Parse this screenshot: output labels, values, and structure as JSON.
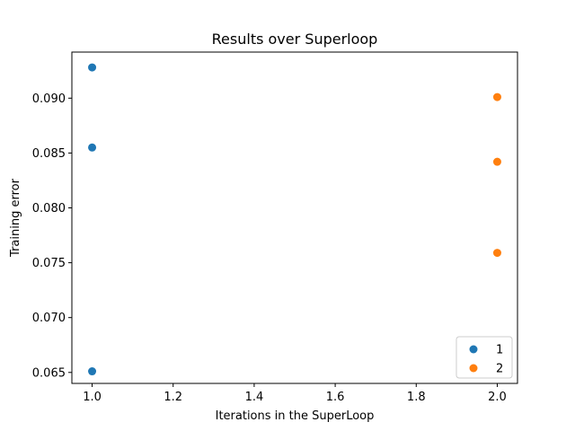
{
  "chart_data": {
    "type": "scatter",
    "title": "Results over Superloop",
    "xlabel": "Iterations in the SuperLoop",
    "ylabel": "Training error",
    "xlim": [
      0.95,
      2.05
    ],
    "ylim": [
      0.064,
      0.0942
    ],
    "xticks": [
      1.0,
      1.2,
      1.4,
      1.6,
      1.8,
      2.0
    ],
    "xtick_labels": [
      "1.0",
      "1.2",
      "1.4",
      "1.6",
      "1.8",
      "2.0"
    ],
    "yticks": [
      0.065,
      0.07,
      0.075,
      0.08,
      0.085,
      0.09
    ],
    "ytick_labels": [
      "0.065",
      "0.070",
      "0.075",
      "0.080",
      "0.085",
      "0.090"
    ],
    "grid": false,
    "legend_position": "bottom-right",
    "series": [
      {
        "name": "1",
        "color": "#1f77b4",
        "x": [
          1.0,
          1.0,
          1.0
        ],
        "y": [
          0.0928,
          0.0855,
          0.0651
        ]
      },
      {
        "name": "2",
        "color": "#ff7f0e",
        "x": [
          2.0,
          2.0,
          2.0
        ],
        "y": [
          0.0901,
          0.0842,
          0.0759
        ]
      }
    ]
  }
}
